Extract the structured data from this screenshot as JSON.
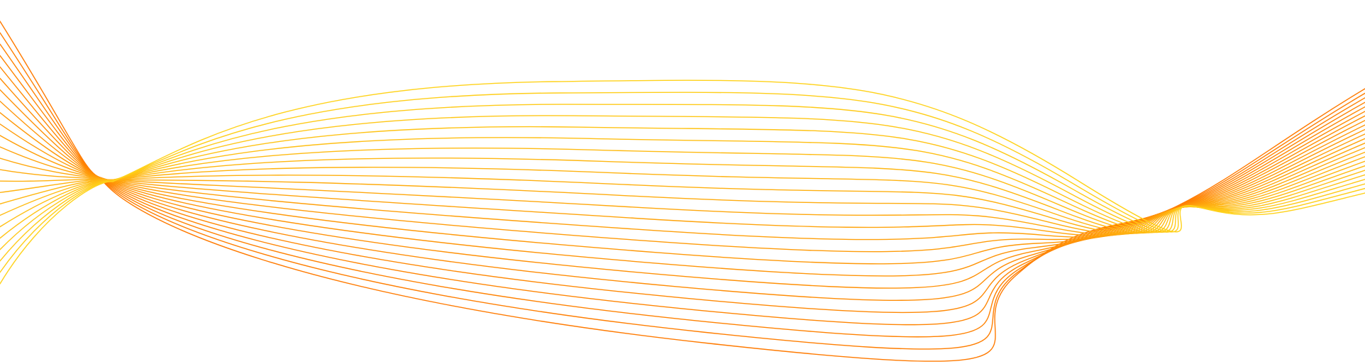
{
  "decoration": {
    "name": "wave-lines-ribbon",
    "line_count": 24,
    "colors": {
      "start": "#FF7A00",
      "end": "#FFD21A",
      "background": "#FFFFFF"
    }
  }
}
